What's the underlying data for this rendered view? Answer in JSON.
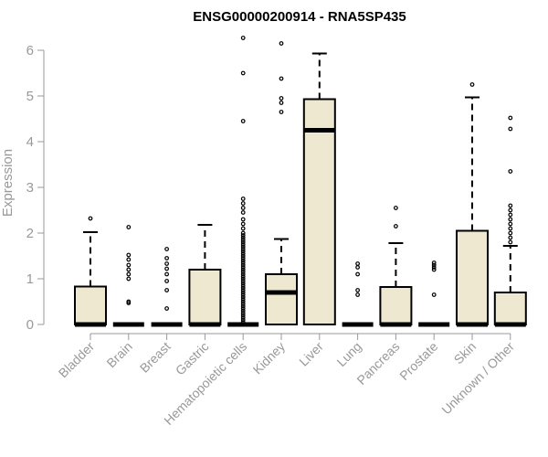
{
  "chart_data": {
    "type": "boxplot",
    "title": "ENSG00000200914 - RNA5SP435",
    "xlabel": "",
    "ylabel": "Expression",
    "ylim": [
      0,
      6.3
    ],
    "yticks": [
      0,
      1,
      2,
      3,
      4,
      5,
      6
    ],
    "box_fill": "#eee8d0",
    "stroke": "#000000",
    "axis_color": "#999999",
    "categories": [
      "Bladder",
      "Brain",
      "Breast",
      "Gastric",
      "Hematopoietic cells",
      "Kidney",
      "Liver",
      "Lung",
      "Pancreas",
      "Prostate",
      "Skin",
      "Unknown / Other"
    ],
    "boxes": [
      {
        "q1": 0,
        "median": 0,
        "q3": 0.83,
        "whisker_low": 0,
        "whisker_high": 2.02,
        "outliers": [
          2.32
        ]
      },
      {
        "q1": 0,
        "median": 0,
        "q3": 0,
        "whisker_low": 0,
        "whisker_high": 0,
        "outliers": [
          0.47,
          0.5,
          1.0,
          1.1,
          1.2,
          1.3,
          1.42,
          1.52,
          2.13
        ]
      },
      {
        "q1": 0,
        "median": 0,
        "q3": 0,
        "whisker_low": 0,
        "whisker_high": 0,
        "outliers": [
          0.35,
          0.75,
          0.95,
          1.1,
          1.22,
          1.33,
          1.45,
          1.65
        ]
      },
      {
        "q1": 0,
        "median": 0,
        "q3": 1.2,
        "whisker_low": 0,
        "whisker_high": 2.18,
        "outliers": []
      },
      {
        "q1": 0,
        "median": 0,
        "q3": 0,
        "whisker_low": 0,
        "whisker_high": 0,
        "outliers": [
          0.05,
          0.1,
          0.15,
          0.2,
          0.25,
          0.3,
          0.35,
          0.4,
          0.45,
          0.5,
          0.55,
          0.6,
          0.65,
          0.7,
          0.75,
          0.8,
          0.85,
          0.9,
          0.95,
          1.0,
          1.05,
          1.1,
          1.15,
          1.2,
          1.25,
          1.3,
          1.35,
          1.4,
          1.45,
          1.5,
          1.55,
          1.6,
          1.65,
          1.7,
          1.75,
          1.8,
          1.85,
          1.9,
          1.95,
          2.0,
          2.1,
          2.2,
          2.3,
          2.45,
          2.55,
          2.65,
          2.75,
          4.45,
          5.5,
          6.27
        ]
      },
      {
        "q1": 0,
        "median": 0.7,
        "q3": 1.1,
        "whisker_low": 0,
        "whisker_high": 1.87,
        "outliers": [
          4.65,
          4.85,
          4.95,
          5.38,
          6.15
        ]
      },
      {
        "q1": 0,
        "median": 4.25,
        "q3": 4.93,
        "whisker_low": 0,
        "whisker_high": 5.93,
        "outliers": []
      },
      {
        "q1": 0,
        "median": 0,
        "q3": 0,
        "whisker_low": 0,
        "whisker_high": 0,
        "outliers": [
          0.65,
          0.75,
          1.1,
          1.25,
          1.33
        ]
      },
      {
        "q1": 0,
        "median": 0,
        "q3": 0.82,
        "whisker_low": 0,
        "whisker_high": 1.78,
        "outliers": [
          2.15,
          2.55
        ]
      },
      {
        "q1": 0,
        "median": 0,
        "q3": 0,
        "whisker_low": 0,
        "whisker_high": 0,
        "outliers": [
          0.65,
          1.2,
          1.25,
          1.3,
          1.35
        ]
      },
      {
        "q1": 0,
        "median": 0,
        "q3": 2.05,
        "whisker_low": 0,
        "whisker_high": 4.97,
        "outliers": [
          5.25
        ]
      },
      {
        "q1": 0,
        "median": 0,
        "q3": 0.7,
        "whisker_low": 0,
        "whisker_high": 1.72,
        "outliers": [
          1.8,
          1.9,
          2.0,
          2.1,
          2.2,
          2.3,
          2.4,
          2.5,
          2.6,
          3.35,
          4.28,
          4.52
        ]
      }
    ]
  }
}
